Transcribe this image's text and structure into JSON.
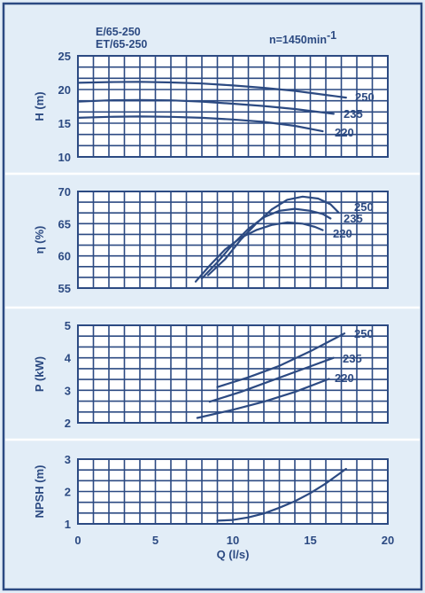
{
  "header": {
    "model_1": "E/65-250",
    "model_2": "ET/65-250",
    "speed": "n=1450min",
    "speed_exp": "-1"
  },
  "chart_data": [
    {
      "type": "line",
      "name": "head",
      "ylabel": "H (m)",
      "xlim": [
        0,
        20
      ],
      "ylim": [
        10,
        25
      ],
      "yticks": [
        "10",
        "15",
        "20",
        "25"
      ],
      "series": [
        {
          "name": "250",
          "x": [
            0,
            2,
            4,
            6,
            8,
            10,
            12,
            14,
            16,
            17.3
          ],
          "y": [
            21.0,
            21.1,
            21.15,
            21.05,
            20.9,
            20.6,
            20.25,
            19.8,
            19.2,
            18.8
          ]
        },
        {
          "name": "235",
          "x": [
            0,
            2,
            4,
            6,
            8,
            10,
            12,
            14,
            16.5
          ],
          "y": [
            18.2,
            18.4,
            18.45,
            18.4,
            18.2,
            17.9,
            17.55,
            17.1,
            16.4
          ]
        },
        {
          "name": "220",
          "x": [
            0,
            2,
            4,
            6,
            8,
            10,
            12,
            14,
            15.8
          ],
          "y": [
            15.8,
            15.95,
            16.0,
            15.95,
            15.8,
            15.55,
            15.2,
            14.6,
            13.8
          ]
        }
      ]
    },
    {
      "type": "line",
      "name": "efficiency",
      "ylabel": "η (%)",
      "xlim": [
        0,
        20
      ],
      "ylim": [
        55,
        70
      ],
      "yticks": [
        "55",
        "60",
        "65",
        "70"
      ],
      "series": [
        {
          "name": "250",
          "x": [
            8.4,
            9.5,
            10.5,
            11.5,
            12.5,
            13.5,
            14.5,
            15.5,
            16.3,
            16.8
          ],
          "y": [
            57.0,
            59.5,
            62.5,
            65.0,
            67.2,
            68.7,
            69.2,
            68.9,
            68.0,
            66.8
          ]
        },
        {
          "name": "235",
          "x": [
            8.0,
            9.0,
            10.0,
            11.0,
            12.0,
            13.0,
            14.0,
            15.0,
            15.8,
            16.3
          ],
          "y": [
            56.5,
            59.0,
            61.8,
            64.2,
            66.0,
            67.0,
            67.3,
            67.0,
            66.5,
            65.8
          ]
        },
        {
          "name": "220",
          "x": [
            7.6,
            8.5,
            9.5,
            10.5,
            11.5,
            12.5,
            13.5,
            14.5,
            15.3,
            15.8
          ],
          "y": [
            56.0,
            58.5,
            61.0,
            62.8,
            64.0,
            64.8,
            65.2,
            65.0,
            64.5,
            64.0
          ]
        }
      ]
    },
    {
      "type": "line",
      "name": "power",
      "ylabel": "P (kW)",
      "xlim": [
        0,
        20
      ],
      "ylim": [
        2,
        5
      ],
      "yticks": [
        "2",
        "3",
        "4",
        "5"
      ],
      "series": [
        {
          "name": "250",
          "x": [
            9.0,
            11,
            13,
            15,
            17.2
          ],
          "y": [
            3.1,
            3.4,
            3.75,
            4.2,
            4.75
          ]
        },
        {
          "name": "235",
          "x": [
            8.5,
            10.5,
            12.5,
            14.5,
            16.5
          ],
          "y": [
            2.65,
            2.95,
            3.3,
            3.65,
            4.0
          ]
        },
        {
          "name": "220",
          "x": [
            7.7,
            10,
            12,
            14,
            16.2
          ],
          "y": [
            2.15,
            2.4,
            2.65,
            2.95,
            3.35
          ]
        }
      ]
    },
    {
      "type": "line",
      "name": "npsh",
      "ylabel": "NPSH (m)",
      "xlabel": "Q (l/s)",
      "xlim": [
        0,
        20
      ],
      "ylim": [
        1,
        3
      ],
      "yticks": [
        "1",
        "2",
        "3"
      ],
      "xticks": [
        "0",
        "5",
        "10",
        "15",
        "20"
      ],
      "series": [
        {
          "name": "",
          "x": [
            9.0,
            10.0,
            11.0,
            12.0,
            13.0,
            14.0,
            15.0,
            16.0,
            17.3
          ],
          "y": [
            1.1,
            1.12,
            1.2,
            1.32,
            1.5,
            1.7,
            1.95,
            2.25,
            2.7
          ]
        }
      ]
    }
  ]
}
